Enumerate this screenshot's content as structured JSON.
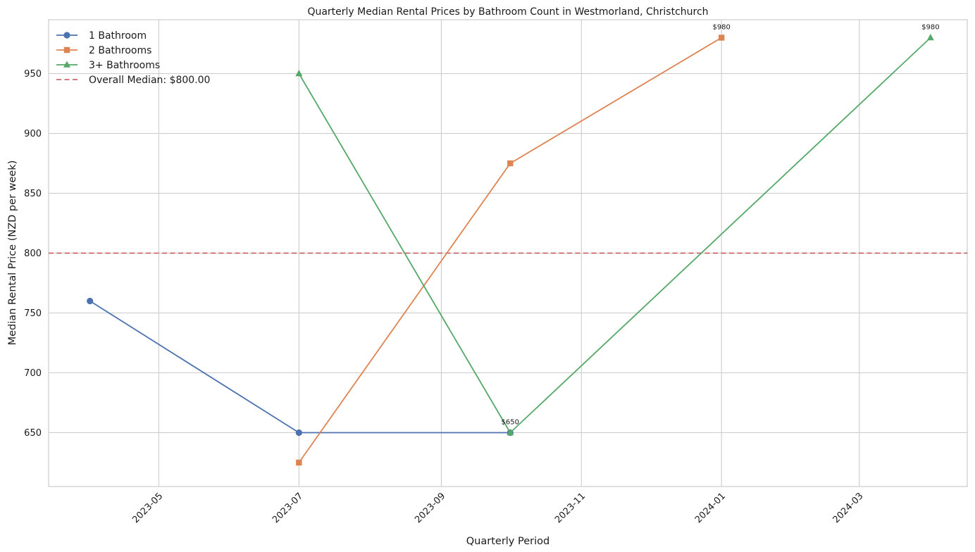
{
  "chart_data": {
    "type": "line",
    "title": "Quarterly Median Rental Prices by Bathroom Count in Westmorland, Christchurch",
    "xlabel": "Quarterly Period",
    "ylabel": "Median Rental Price (NZD per week)",
    "x_ticks": [
      "2023-05",
      "2023-07",
      "2023-09",
      "2023-11",
      "2024-01",
      "2024-03"
    ],
    "y_ticks": [
      650,
      700,
      750,
      800,
      850,
      900,
      950
    ],
    "xlim": [
      "2023-03-14",
      "2024-04-17"
    ],
    "ylim": [
      605,
      995
    ],
    "grid": true,
    "legend_position": "top-left",
    "series": [
      {
        "name": "1 Bathroom",
        "color": "#4c72b0",
        "marker": "circle",
        "x": [
          "2023-04-01",
          "2023-07-01",
          "2023-10-01"
        ],
        "values": [
          760,
          650,
          650
        ]
      },
      {
        "name": "2 Bathrooms",
        "color": "#dd8452",
        "marker": "square",
        "x": [
          "2023-07-01",
          "2023-10-01",
          "2024-01-01"
        ],
        "values": [
          625,
          875,
          980
        ]
      },
      {
        "name": "3+ Bathrooms",
        "color": "#55a868",
        "marker": "triangle",
        "x": [
          "2023-07-01",
          "2023-10-01",
          "2024-04-01"
        ],
        "values": [
          950,
          650,
          980
        ]
      }
    ],
    "reference_line": {
      "label": "Overall Median: $800.00",
      "value": 800,
      "color": "#c44e52",
      "style": "dashed"
    },
    "annotations": [
      {
        "text": "$650",
        "x": "2023-10-01",
        "y": 650
      },
      {
        "text": "$980",
        "x": "2024-01-01",
        "y": 980
      },
      {
        "text": "$980",
        "x": "2024-04-01",
        "y": 980
      }
    ]
  }
}
